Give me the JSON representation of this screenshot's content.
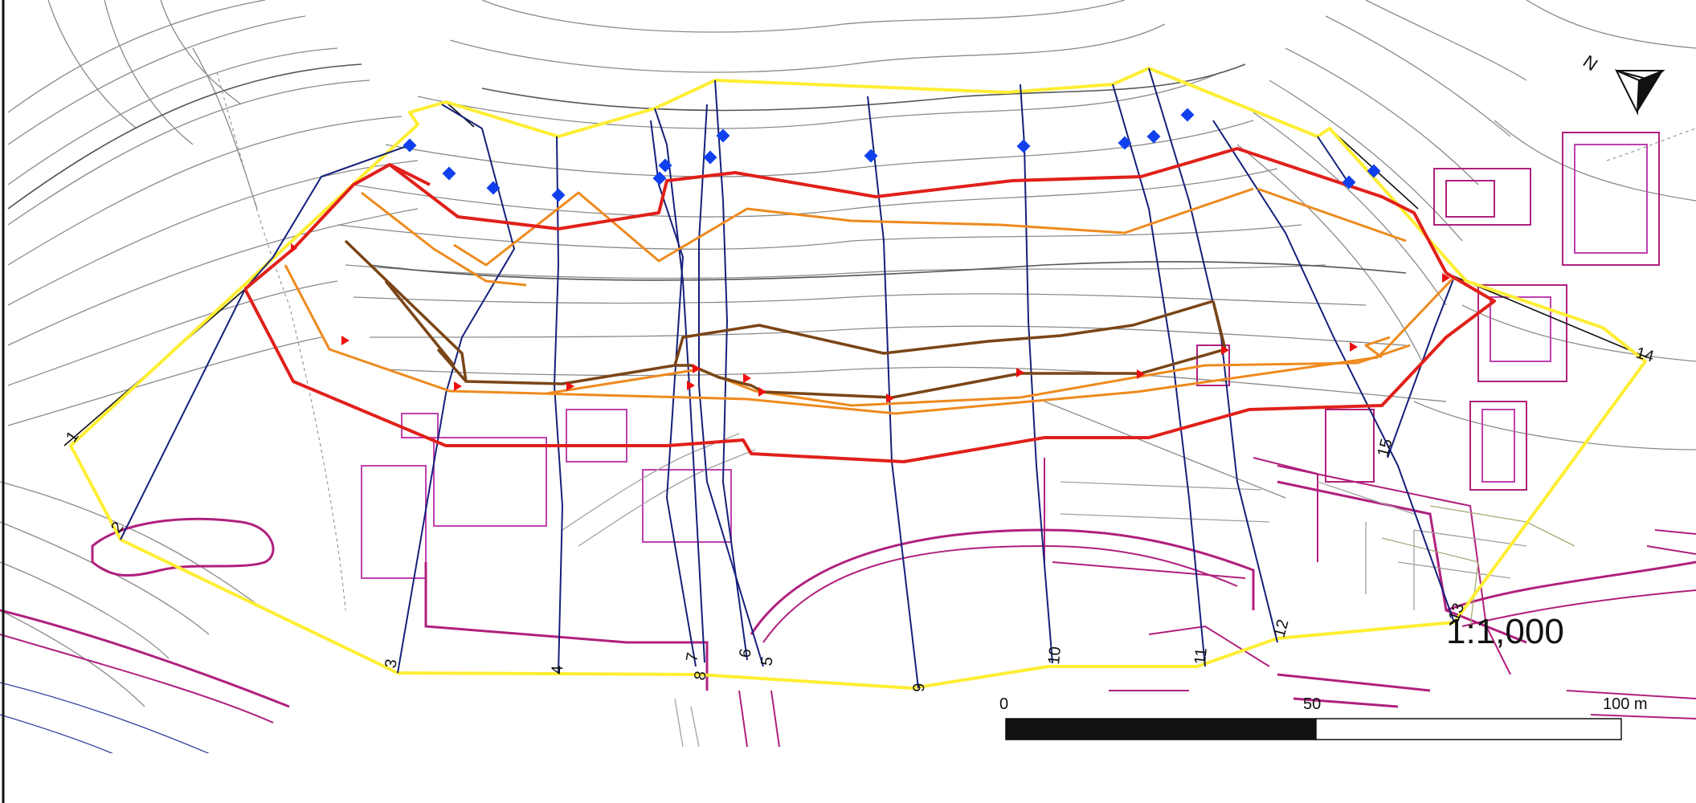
{
  "map": {
    "north_label": "N",
    "scale_ratio": "1:1,000",
    "scale_bar": {
      "labels": [
        "0",
        "50",
        "100 m"
      ],
      "unit": "m"
    },
    "section_labels": [
      "1",
      "2",
      "3",
      "4",
      "5",
      "6",
      "7",
      "8",
      "9",
      "10",
      "11",
      "12",
      "13",
      "14",
      "15"
    ],
    "colors": {
      "boundary": "#ffee33",
      "section_lines": "#14207a",
      "red_line": "#e0201a",
      "orange_line": "#ee8a1e",
      "brown_line": "#7a4516",
      "buildings": "#b0207e",
      "contours": "#808080",
      "blue_markers": "#1040ee",
      "red_markers": "#ee1010"
    }
  }
}
